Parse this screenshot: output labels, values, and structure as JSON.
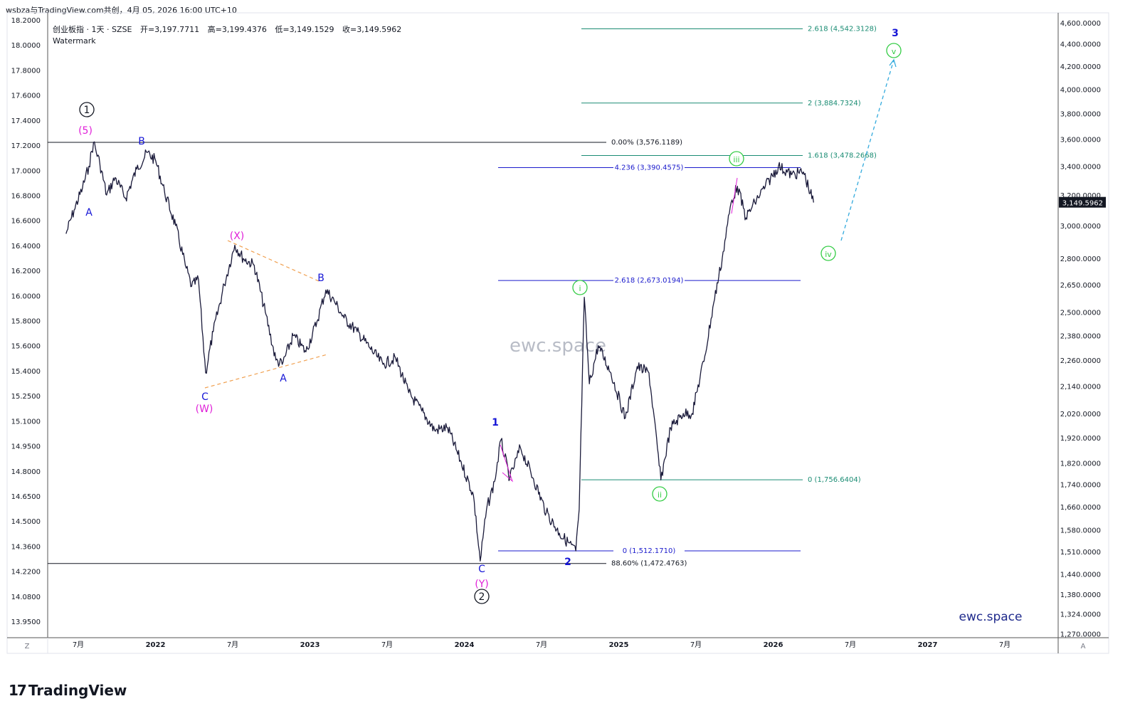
{
  "header": {
    "publisher": "wsbza与TradingView.com共创，4月 05, 2026 16:00 UTC+10",
    "symbol_line": "创业板指 · 1天 · SZSE",
    "open_label": "开",
    "open": "3,197.7711",
    "high_label": "高",
    "high": "3,199.4376",
    "low_label": "低",
    "low": "3,149.1529",
    "close_label": "收",
    "close": "3,149.5962",
    "watermark_label": "Watermark"
  },
  "watermarks": {
    "center": "ewc.space",
    "bottom_right": "ewc.space"
  },
  "footer": {
    "brand": "TradingView",
    "z_button": "Z",
    "a_button": "A"
  },
  "colors": {
    "candle": "#1a1a3a",
    "fib_green": "#1a8c73",
    "fib_blue": "#1a1acc",
    "wave_blue": "#1515d6",
    "wave_magenta": "#e020d8",
    "wave_green": "#33cc44",
    "triangle": "#f0a050",
    "projection": "#33aadd",
    "price_tag_bg": "#131722"
  },
  "chart_data": {
    "type": "line",
    "symbol": "创业板指",
    "interval": "1天",
    "exchange": "SZSE",
    "x_ticks": [
      "7月",
      "2022",
      "7月",
      "2023",
      "7月",
      "2024",
      "7月",
      "2025",
      "7月",
      "2026",
      "7月",
      "2027",
      "7月"
    ],
    "y_right_ticks": [
      "4,600.0000",
      "4,400.0000",
      "4,200.0000",
      "4,000.0000",
      "3,800.0000",
      "3,600.0000",
      "3,400.0000",
      "3,200.0000",
      "3,000.0000",
      "2,800.0000",
      "2,650.0000",
      "2,500.0000",
      "2,380.0000",
      "2,260.0000",
      "2,140.0000",
      "2,020.0000",
      "1,920.0000",
      "1,820.0000",
      "1,740.0000",
      "1,660.0000",
      "1,580.0000",
      "1,510.0000",
      "1,440.0000",
      "1,380.0000",
      "1,324.0000",
      "1,270.0000"
    ],
    "y_left_ticks": [
      "18.2000",
      "18.0000",
      "17.8000",
      "17.6000",
      "17.4000",
      "17.2000",
      "17.0000",
      "16.8000",
      "16.6000",
      "16.4000",
      "16.2000",
      "16.0000",
      "15.8000",
      "15.6000",
      "15.4000",
      "15.2500",
      "15.1000",
      "14.9500",
      "14.8000",
      "14.6500",
      "14.5000",
      "14.3600",
      "14.2200",
      "14.0800",
      "13.9500"
    ],
    "log_scale": true,
    "last_price": "3,149.5962",
    "price_path": [
      [
        "2021-06-01",
        2950
      ],
      [
        "2021-06-20",
        3100
      ],
      [
        "2021-07-10",
        3250
      ],
      [
        "2021-07-25",
        3400
      ],
      [
        "2021-08-05",
        3576
      ],
      [
        "2021-08-20",
        3420
      ],
      [
        "2021-09-05",
        3200
      ],
      [
        "2021-09-25",
        3320
      ],
      [
        "2021-10-20",
        3180
      ],
      [
        "2021-11-15",
        3380
      ],
      [
        "2021-12-10",
        3500
      ],
      [
        "2021-12-30",
        3440
      ],
      [
        "2022-01-20",
        3220
      ],
      [
        "2022-02-15",
        3000
      ],
      [
        "2022-03-10",
        2760
      ],
      [
        "2022-03-25",
        2640
      ],
      [
        "2022-04-10",
        2680
      ],
      [
        "2022-04-27",
        2200
      ],
      [
        "2022-05-15",
        2400
      ],
      [
        "2022-06-10",
        2650
      ],
      [
        "2022-07-05",
        2880
      ],
      [
        "2022-07-25",
        2800
      ],
      [
        "2022-08-20",
        2760
      ],
      [
        "2022-09-15",
        2500
      ],
      [
        "2022-10-10",
        2260
      ],
      [
        "2022-10-25",
        2240
      ],
      [
        "2022-11-20",
        2380
      ],
      [
        "2022-12-20",
        2300
      ],
      [
        "2023-01-15",
        2450
      ],
      [
        "2023-02-05",
        2620
      ],
      [
        "2023-02-25",
        2560
      ],
      [
        "2023-03-20",
        2470
      ],
      [
        "2023-04-20",
        2400
      ],
      [
        "2023-05-20",
        2320
      ],
      [
        "2023-06-20",
        2240
      ],
      [
        "2023-07-20",
        2270
      ],
      [
        "2023-08-20",
        2110
      ],
      [
        "2023-09-20",
        2030
      ],
      [
        "2023-10-20",
        1950
      ],
      [
        "2023-11-20",
        1960
      ],
      [
        "2023-12-20",
        1830
      ],
      [
        "2024-01-20",
        1700
      ],
      [
        "2024-02-05",
        1480
      ],
      [
        "2024-02-20",
        1650
      ],
      [
        "2024-03-10",
        1750
      ],
      [
        "2024-03-25",
        1910
      ],
      [
        "2024-04-15",
        1760
      ],
      [
        "2024-05-10",
        1880
      ],
      [
        "2024-06-10",
        1760
      ],
      [
        "2024-07-10",
        1640
      ],
      [
        "2024-08-10",
        1570
      ],
      [
        "2024-09-18",
        1512
      ],
      [
        "2024-09-26",
        1650
      ],
      [
        "2024-10-08",
        2580
      ],
      [
        "2024-10-20",
        2150
      ],
      [
        "2024-11-10",
        2330
      ],
      [
        "2024-12-10",
        2200
      ],
      [
        "2025-01-13",
        2000
      ],
      [
        "2025-02-10",
        2230
      ],
      [
        "2025-03-10",
        2200
      ],
      [
        "2025-04-07",
        1756
      ],
      [
        "2025-04-30",
        1960
      ],
      [
        "2025-05-30",
        2020
      ],
      [
        "2025-06-20",
        2020
      ],
      [
        "2025-07-20",
        2280
      ],
      [
        "2025-08-10",
        2550
      ],
      [
        "2025-08-30",
        2800
      ],
      [
        "2025-09-20",
        3150
      ],
      [
        "2025-10-05",
        3260
      ],
      [
        "2025-10-25",
        3050
      ],
      [
        "2025-11-15",
        3150
      ],
      [
        "2025-12-10",
        3260
      ],
      [
        "2026-01-10",
        3400
      ],
      [
        "2026-02-10",
        3340
      ],
      [
        "2026-03-10",
        3360
      ],
      [
        "2026-04-03",
        3150
      ]
    ],
    "fib_levels": [
      {
        "label": "2.618 (4,542.3128)",
        "price": 4542.3128,
        "color": "green"
      },
      {
        "label": "2 (3,884.7324)",
        "price": 3884.7324,
        "color": "green"
      },
      {
        "label": "1.618 (3,478.2668)",
        "price": 3478.2668,
        "color": "green"
      },
      {
        "label": "0 (1,756.6404)",
        "price": 1756.6404,
        "color": "green"
      },
      {
        "label": "0.00% (3,576.1189)",
        "price": 3576.1189,
        "color": "black"
      },
      {
        "label": "88.60% (1,472.4763)",
        "price": 1472.4763,
        "color": "black"
      },
      {
        "label": "4.236 (3,390.4575)",
        "price": 3390.4575,
        "color": "blue"
      },
      {
        "label": "2.618 (2,673.0194)",
        "price": 2673.0194,
        "color": "blue"
      },
      {
        "label": "0 (1,512.1710)",
        "price": 1512.171,
        "color": "blue"
      }
    ],
    "wave_labels": [
      {
        "text": "1",
        "style": "circle-black"
      },
      {
        "text": "(5)",
        "style": "magenta"
      },
      {
        "text": "A",
        "style": "blue"
      },
      {
        "text": "B",
        "style": "blue"
      },
      {
        "text": "C",
        "style": "blue"
      },
      {
        "text": "(W)",
        "style": "magenta"
      },
      {
        "text": "(X)",
        "style": "magenta"
      },
      {
        "text": "A",
        "style": "blue"
      },
      {
        "text": "B",
        "style": "blue"
      },
      {
        "text": "C",
        "style": "blue"
      },
      {
        "text": "(Y)",
        "style": "magenta"
      },
      {
        "text": "2",
        "style": "circle-black"
      },
      {
        "text": "1",
        "style": "blue-bold"
      },
      {
        "text": "2",
        "style": "blue-bold"
      },
      {
        "text": "i",
        "style": "circle-green"
      },
      {
        "text": "ii",
        "style": "circle-green"
      },
      {
        "text": "iii",
        "style": "circle-green"
      },
      {
        "text": "iv",
        "style": "circle-green"
      },
      {
        "text": "v",
        "style": "circle-green"
      },
      {
        "text": "3",
        "style": "blue-bold"
      }
    ]
  }
}
